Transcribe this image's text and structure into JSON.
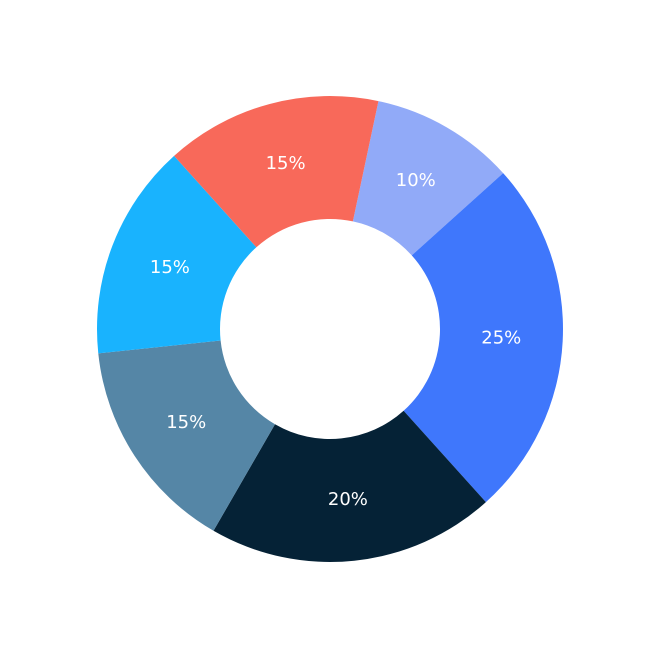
{
  "chart_data": {
    "type": "pie",
    "donut": true,
    "start_angle_deg": 12,
    "direction": "clockwise",
    "slices": [
      {
        "label": "10%",
        "value": 10,
        "color": "#91AAF8"
      },
      {
        "label": "25%",
        "value": 25,
        "color": "#3F77FC"
      },
      {
        "label": "20%",
        "value": 20,
        "color": "#052236"
      },
      {
        "label": "15%",
        "value": 15,
        "color": "#5586A6"
      },
      {
        "label": "15%",
        "value": 15,
        "color": "#19B3FE"
      },
      {
        "label": "15%",
        "value": 15,
        "color": "#F8695A"
      }
    ],
    "legend": "none"
  }
}
